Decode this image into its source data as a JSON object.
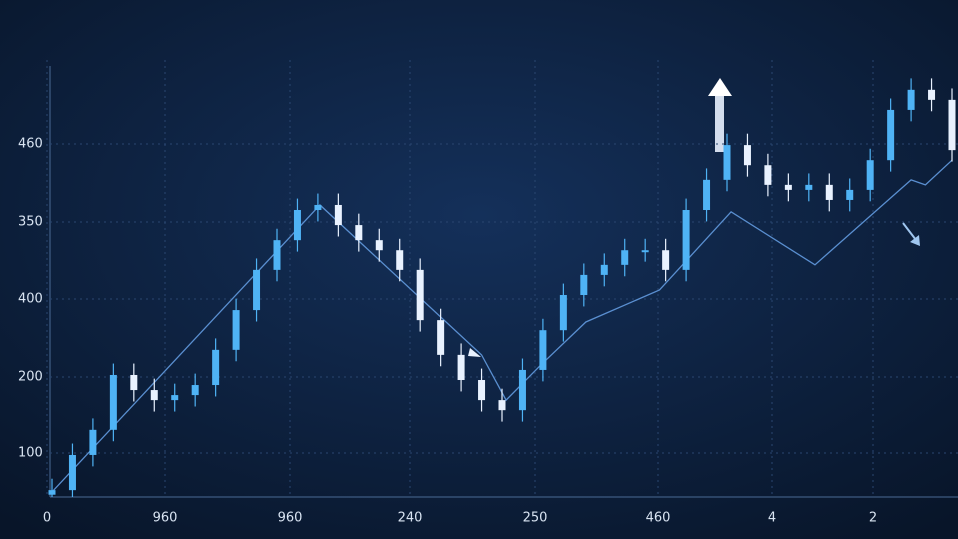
{
  "chart_data": {
    "type": "candlestick",
    "x_labels": [
      "0",
      "960",
      "960",
      "240",
      "250",
      "460",
      "4",
      "2"
    ],
    "y_labels": [
      "460",
      "350",
      "400",
      "200",
      "100"
    ],
    "ylim": [
      0,
      100
    ],
    "xlim": [
      0,
      44
    ],
    "up_color": "#4fb3f5",
    "down_color": "#e9f2ff",
    "open": [
      0.5,
      1.5,
      9.2,
      14.7,
      26.7,
      23.4,
      21.2,
      22.3,
      24.5,
      32.2,
      40.9,
      49.7,
      56.2,
      62.8,
      63.9,
      59.5,
      56.2,
      54.0,
      49.7,
      38.7,
      31.1,
      25.6,
      21.2,
      19.0,
      27.8,
      36.5,
      44.2,
      48.6,
      50.8,
      54.0,
      54.0,
      49.7,
      62.8,
      69.4,
      77.0,
      72.6,
      68.3,
      67.2,
      68.3,
      65.0,
      67.2,
      73.7,
      84.7,
      89.1,
      86.9
    ],
    "high": [
      4.0,
      11.7,
      17.2,
      29.2,
      29.2,
      25.9,
      24.8,
      27.0,
      34.7,
      43.4,
      52.2,
      58.7,
      65.3,
      66.4,
      66.4,
      62.0,
      58.7,
      56.5,
      52.2,
      41.2,
      33.6,
      28.1,
      23.7,
      30.3,
      39.0,
      46.7,
      51.1,
      53.3,
      56.5,
      56.5,
      56.5,
      65.3,
      71.9,
      79.5,
      79.5,
      75.1,
      70.8,
      70.8,
      70.8,
      69.7,
      76.2,
      87.2,
      91.6,
      91.6,
      89.4
    ],
    "low": [
      0,
      0,
      6.7,
      12.2,
      20.9,
      18.7,
      18.7,
      19.8,
      22.0,
      29.7,
      38.4,
      47.2,
      53.7,
      60.3,
      57.0,
      53.7,
      51.5,
      47.2,
      36.2,
      28.6,
      23.1,
      18.7,
      16.5,
      16.5,
      25.3,
      34.0,
      41.7,
      46.1,
      48.3,
      51.5,
      47.2,
      47.2,
      60.3,
      66.9,
      70.1,
      65.8,
      64.7,
      64.7,
      62.5,
      62.5,
      64.7,
      71.2,
      82.2,
      84.4,
      73.4
    ],
    "close": [
      1.5,
      9.2,
      14.7,
      26.7,
      23.4,
      21.2,
      22.3,
      24.5,
      32.2,
      40.9,
      49.7,
      56.2,
      62.8,
      63.9,
      59.5,
      56.2,
      54.0,
      49.7,
      38.7,
      31.1,
      25.6,
      21.2,
      19.0,
      27.8,
      36.5,
      44.2,
      48.6,
      50.8,
      54.0,
      54.0,
      49.7,
      62.8,
      69.4,
      77.0,
      72.6,
      68.3,
      67.2,
      68.3,
      65.0,
      67.2,
      73.7,
      84.7,
      89.1,
      86.9,
      75.9
    ],
    "trend": {
      "color": "#5a8fd0",
      "x": [
        0,
        13.1,
        21,
        22.2,
        23.9,
        26.1,
        29.7,
        33.2,
        37.3,
        42,
        42.7,
        44
      ],
      "values": [
        1.1,
        63.9,
        31.1,
        21.2,
        28.9,
        38.3,
        45.3,
        62.4,
        50.8,
        69.4,
        68.3,
        73.7
      ]
    }
  }
}
